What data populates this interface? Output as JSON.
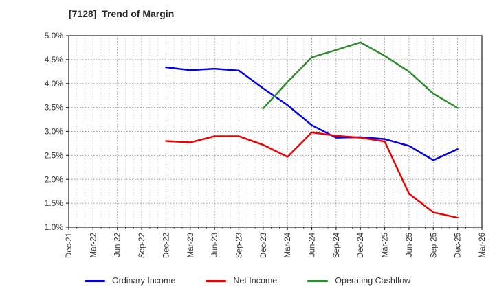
{
  "chart_data": {
    "type": "line",
    "title": "[7128]  Trend of Margin",
    "x_categories": [
      "Dec-21",
      "Mar-22",
      "Jun-22",
      "Sep-22",
      "Dec-22",
      "Mar-23",
      "Jun-23",
      "Sep-23",
      "Dec-23",
      "Mar-24",
      "Jun-24",
      "Sep-24",
      "Dec-24",
      "Mar-25",
      "Jun-25",
      "Sep-25",
      "Dec-25",
      "Mar-26"
    ],
    "y_tick_labels": [
      "5.0%",
      "4.5%",
      "4.0%",
      "3.5%",
      "3.0%",
      "2.5%",
      "2.0%",
      "1.5%",
      "1.0%"
    ],
    "ylim": [
      1.0,
      5.0
    ],
    "y_tick_step": 0.5,
    "x_minor_divisions_per_interval": 3,
    "grid": "major-and-minor-dotted",
    "legend_position": "bottom",
    "series": [
      {
        "name": "Ordinary Income",
        "color": "#0000ee",
        "values": [
          null,
          null,
          null,
          null,
          4.34,
          4.28,
          4.31,
          4.27,
          3.9,
          3.55,
          3.13,
          2.87,
          2.88,
          2.84,
          2.7,
          2.4,
          2.63,
          null
        ]
      },
      {
        "name": "Net Income",
        "color": "#ee0000",
        "values": [
          null,
          null,
          null,
          null,
          2.8,
          2.77,
          2.9,
          2.9,
          2.72,
          2.47,
          2.98,
          2.91,
          2.87,
          2.79,
          1.7,
          1.31,
          1.2,
          null
        ]
      },
      {
        "name": "Operating Cashflow",
        "color": "#2e8b2e",
        "values": [
          null,
          null,
          null,
          null,
          null,
          null,
          null,
          null,
          3.48,
          4.03,
          4.55,
          4.7,
          4.86,
          4.58,
          4.25,
          3.79,
          3.49,
          null
        ]
      }
    ],
    "colors": {
      "spine": "#2f2f2f",
      "major_grid": "#999999",
      "minor_grid": "#c9c9c9",
      "tick_label": "#333333"
    }
  }
}
